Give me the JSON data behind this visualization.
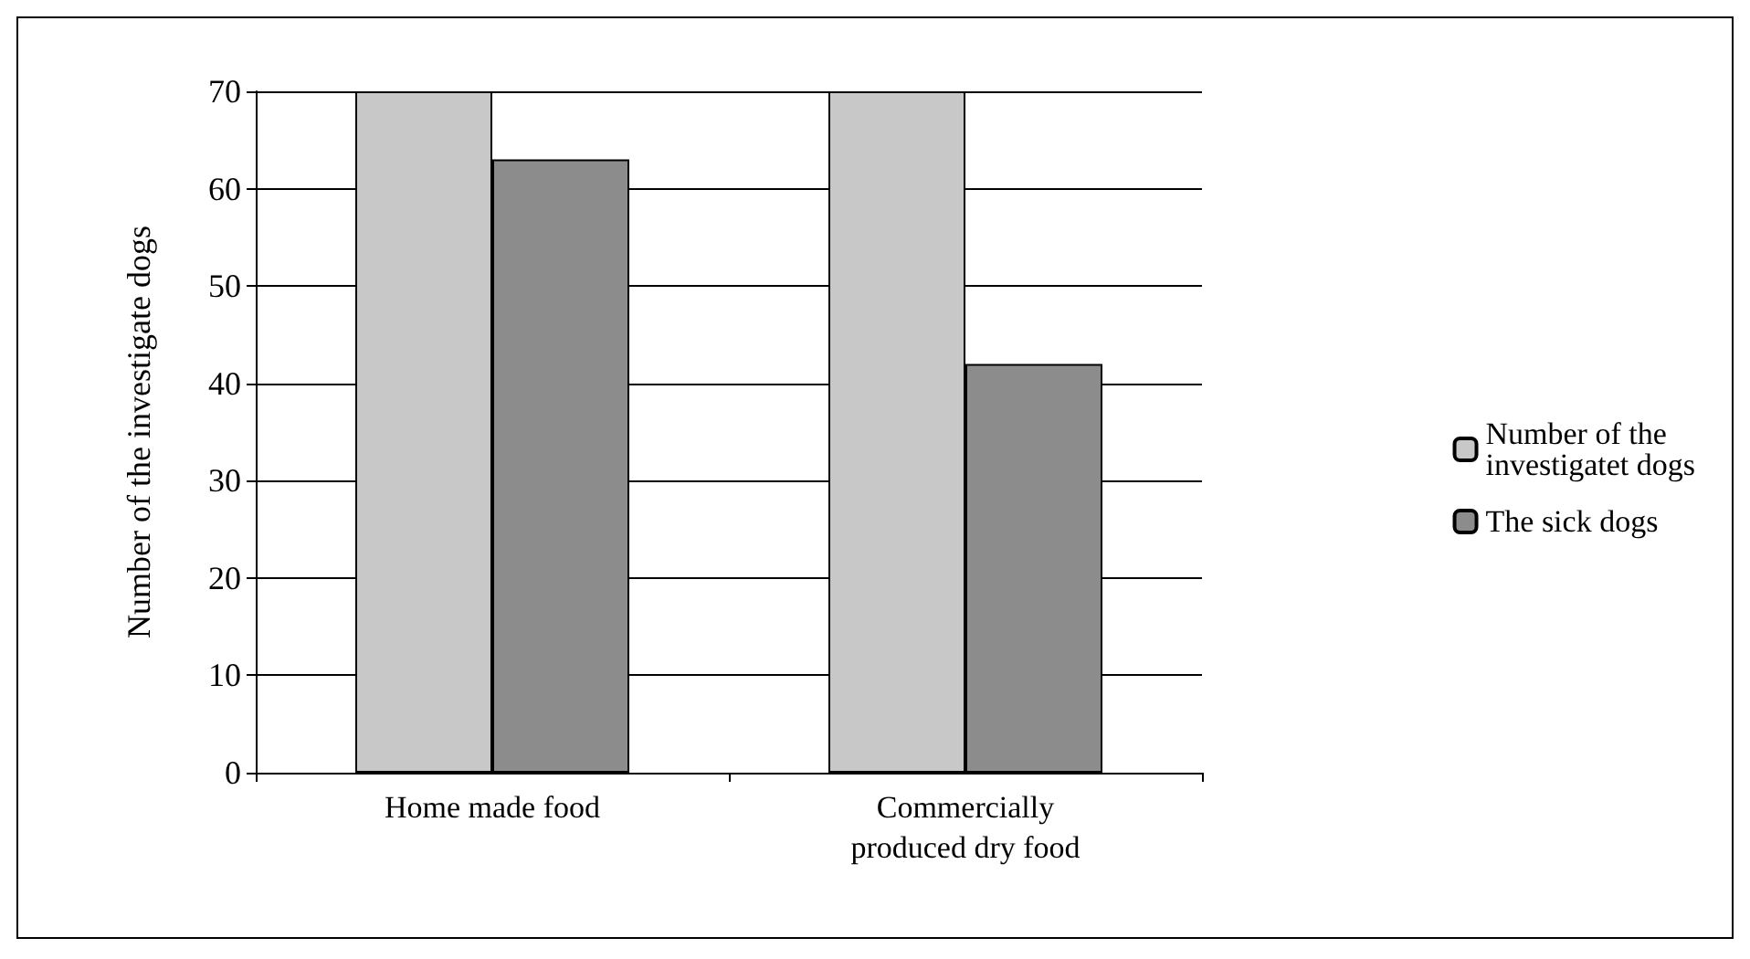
{
  "chart_data": {
    "type": "bar",
    "ylabel": "Number of the investigate dogs",
    "categories": [
      "Home made food",
      "Commercially\nproduced dry food"
    ],
    "series": [
      {
        "name": "Number of the\ninvestigatet dogs",
        "color": "#c8c8c8",
        "values": [
          70,
          70
        ]
      },
      {
        "name": "The sick dogs",
        "color": "#8c8c8c",
        "values": [
          63,
          42
        ]
      }
    ],
    "ylim": [
      0,
      70
    ],
    "yticks": [
      0,
      10,
      20,
      30,
      40,
      50,
      60,
      70
    ],
    "grid": "y",
    "legend": "right"
  }
}
